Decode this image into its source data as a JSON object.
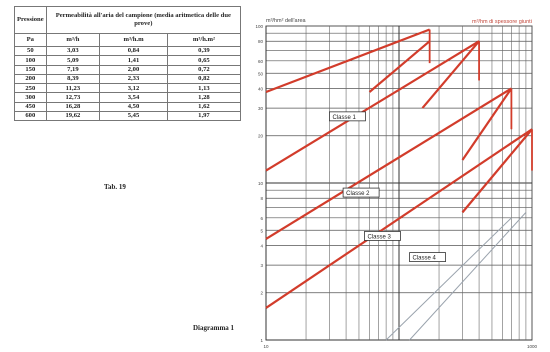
{
  "table": {
    "headers": {
      "pressione": "Pressione",
      "permeabilita": "Permeabilità all'aria del campione (media aritmetica delle due prove)",
      "units": [
        "Pa",
        "m³/h",
        "m³/h.m",
        "m³/h.m²"
      ]
    },
    "rows": [
      [
        "50",
        "3,03",
        "0,84",
        "0,39"
      ],
      [
        "100",
        "5,09",
        "1,41",
        "0,65"
      ],
      [
        "150",
        "7,19",
        "2,00",
        "0,72"
      ],
      [
        "200",
        "8,39",
        "2,33",
        "0,82"
      ],
      [
        "250",
        "11,23",
        "3,12",
        "1,13"
      ],
      [
        "300",
        "12,73",
        "3,54",
        "1,28"
      ],
      [
        "450",
        "16,28",
        "4,50",
        "1,62"
      ],
      [
        "600",
        "19,62",
        "5,45",
        "1,97"
      ]
    ],
    "caption": "Tab. 19"
  },
  "chart_data": {
    "type": "line",
    "title_left": "m³/hm² dell'area",
    "title_right": "m³/hm di spessore giunti",
    "yscale": "log",
    "xscale": "log",
    "xlim": [
      10,
      1000
    ],
    "ylim": [
      1,
      100
    ],
    "x_ticks": [
      "10",
      "1000"
    ],
    "left_ticks": [
      "100",
      "80",
      "60",
      "50",
      "40",
      "30",
      "20",
      "10",
      "8",
      "6",
      "5",
      "4",
      "3",
      "2",
      "1"
    ],
    "series": [
      {
        "name": "Classe 1",
        "label": "Classe 1"
      },
      {
        "name": "Classe 2",
        "label": "Classe 2"
      },
      {
        "name": "Classe 3",
        "label": "Classe 3"
      },
      {
        "name": "Classe 4",
        "label": "Classe 4"
      }
    ],
    "diagram_label": "Diagramma 1"
  }
}
